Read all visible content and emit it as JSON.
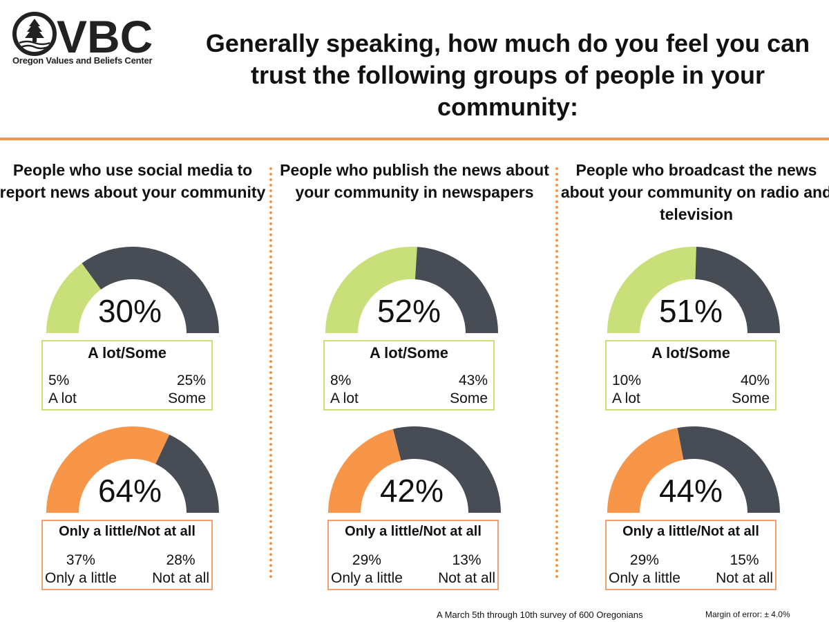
{
  "logo": {
    "text": "VBC",
    "subtitle": "Oregon Values and Beliefs Center"
  },
  "title": "Generally speaking, how much do you feel you can trust the following groups of people in your community:",
  "colors": {
    "green": "#c9e07a",
    "orange": "#f79548",
    "dark": "#474c55"
  },
  "chart_data": [
    {
      "type": "pie",
      "title": "People who use social media to report news about your community",
      "trust": {
        "label": "A lot/Some",
        "value": 30,
        "display": "30%",
        "parts": [
          {
            "label": "A lot",
            "value": 5,
            "display": "5%"
          },
          {
            "label": "Some",
            "value": 25,
            "display": "25%"
          }
        ]
      },
      "distrust": {
        "label": "Only a little/Not at all",
        "value": 64,
        "display": "64%",
        "parts": [
          {
            "label": "Only a little",
            "value": 37,
            "display": "37%"
          },
          {
            "label": "Not at all",
            "value": 28,
            "display": "28%"
          }
        ]
      }
    },
    {
      "type": "pie",
      "title": "People who publish the news about your community in newspapers",
      "trust": {
        "label": "A lot/Some",
        "value": 52,
        "display": "52%",
        "parts": [
          {
            "label": "A lot",
            "value": 8,
            "display": "8%"
          },
          {
            "label": "Some",
            "value": 43,
            "display": "43%"
          }
        ]
      },
      "distrust": {
        "label": "Only a little/Not at all",
        "value": 42,
        "display": "42%",
        "parts": [
          {
            "label": "Only a little",
            "value": 29,
            "display": "29%"
          },
          {
            "label": "Not at all",
            "value": 13,
            "display": "13%"
          }
        ]
      }
    },
    {
      "type": "pie",
      "title": "People who broadcast the news about your community on radio and television",
      "trust": {
        "label": "A lot/Some",
        "value": 51,
        "display": "51%",
        "parts": [
          {
            "label": "A lot",
            "value": 10,
            "display": "10%"
          },
          {
            "label": "Some",
            "value": 40,
            "display": "40%"
          }
        ]
      },
      "distrust": {
        "label": "Only a little/Not at all",
        "value": 44,
        "display": "44%",
        "parts": [
          {
            "label": "Only a little",
            "value": 29,
            "display": "29%"
          },
          {
            "label": "Not at all",
            "value": 15,
            "display": "15%"
          }
        ]
      }
    }
  ],
  "footer": {
    "survey": "A March 5th through 10th survey of 600 Oregonians",
    "margin": "Margin of error: ± 4.0%"
  }
}
